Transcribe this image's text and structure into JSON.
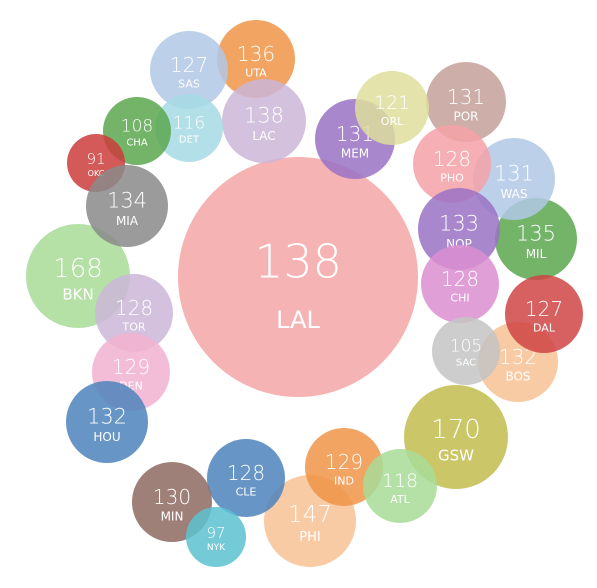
{
  "chart_data": {
    "type": "bubble",
    "title": "",
    "bubbles": [
      {
        "team": "LAL",
        "value": 138,
        "color": "#f4a6a6"
      },
      {
        "team": "GSW",
        "value": 170,
        "color": "#c2bd4d"
      },
      {
        "team": "BKN",
        "value": 168,
        "color": "#a8dc98"
      },
      {
        "team": "PHI",
        "value": 147,
        "color": "#f8c294"
      },
      {
        "team": "MIL",
        "value": 135,
        "color": "#5aa74f"
      },
      {
        "team": "BOS",
        "value": 132,
        "color": "#f8c294"
      },
      {
        "team": "WAS",
        "value": 131,
        "color": "#b0c8e6"
      },
      {
        "team": "POR",
        "value": 131,
        "color": "#c4a09a"
      },
      {
        "team": "MEM",
        "value": 131,
        "color": "#9a72c4"
      },
      {
        "team": "ORL",
        "value": 121,
        "color": "#dede9c"
      },
      {
        "team": "PHO",
        "value": 128,
        "color": "#f5a2a8"
      },
      {
        "team": "NOP",
        "value": 133,
        "color": "#9a72c4"
      },
      {
        "team": "CHI",
        "value": 128,
        "color": "#dc8ed0"
      },
      {
        "team": "DAL",
        "value": 127,
        "color": "#d04444"
      },
      {
        "team": "SAC",
        "value": 105,
        "color": "#c4c4c4"
      },
      {
        "team": "UTA",
        "value": 136,
        "color": "#f09448"
      },
      {
        "team": "SAS",
        "value": 127,
        "color": "#b0c8e6"
      },
      {
        "team": "LAC",
        "value": 138,
        "color": "#cbb6d8"
      },
      {
        "team": "DET",
        "value": 116,
        "color": "#a6dae4"
      },
      {
        "team": "CHA",
        "value": 108,
        "color": "#5aa74f"
      },
      {
        "team": "OKC",
        "value": 91,
        "color": "#cc3c3c"
      },
      {
        "team": "MIA",
        "value": 134,
        "color": "#8a8a8a"
      },
      {
        "team": "TOR",
        "value": 128,
        "color": "#cbb6d8"
      },
      {
        "team": "DEN",
        "value": 129,
        "color": "#f2b2d0"
      },
      {
        "team": "HOU",
        "value": 132,
        "color": "#4c84bc"
      },
      {
        "team": "CLE",
        "value": 128,
        "color": "#4c84bc"
      },
      {
        "team": "MIN",
        "value": 130,
        "color": "#8e6a62"
      },
      {
        "team": "NYK",
        "value": 97,
        "color": "#5cc2d0"
      },
      {
        "team": "IND",
        "value": 129,
        "color": "#f09448"
      },
      {
        "team": "ATL",
        "value": 118,
        "color": "#a8dc98"
      }
    ]
  }
}
